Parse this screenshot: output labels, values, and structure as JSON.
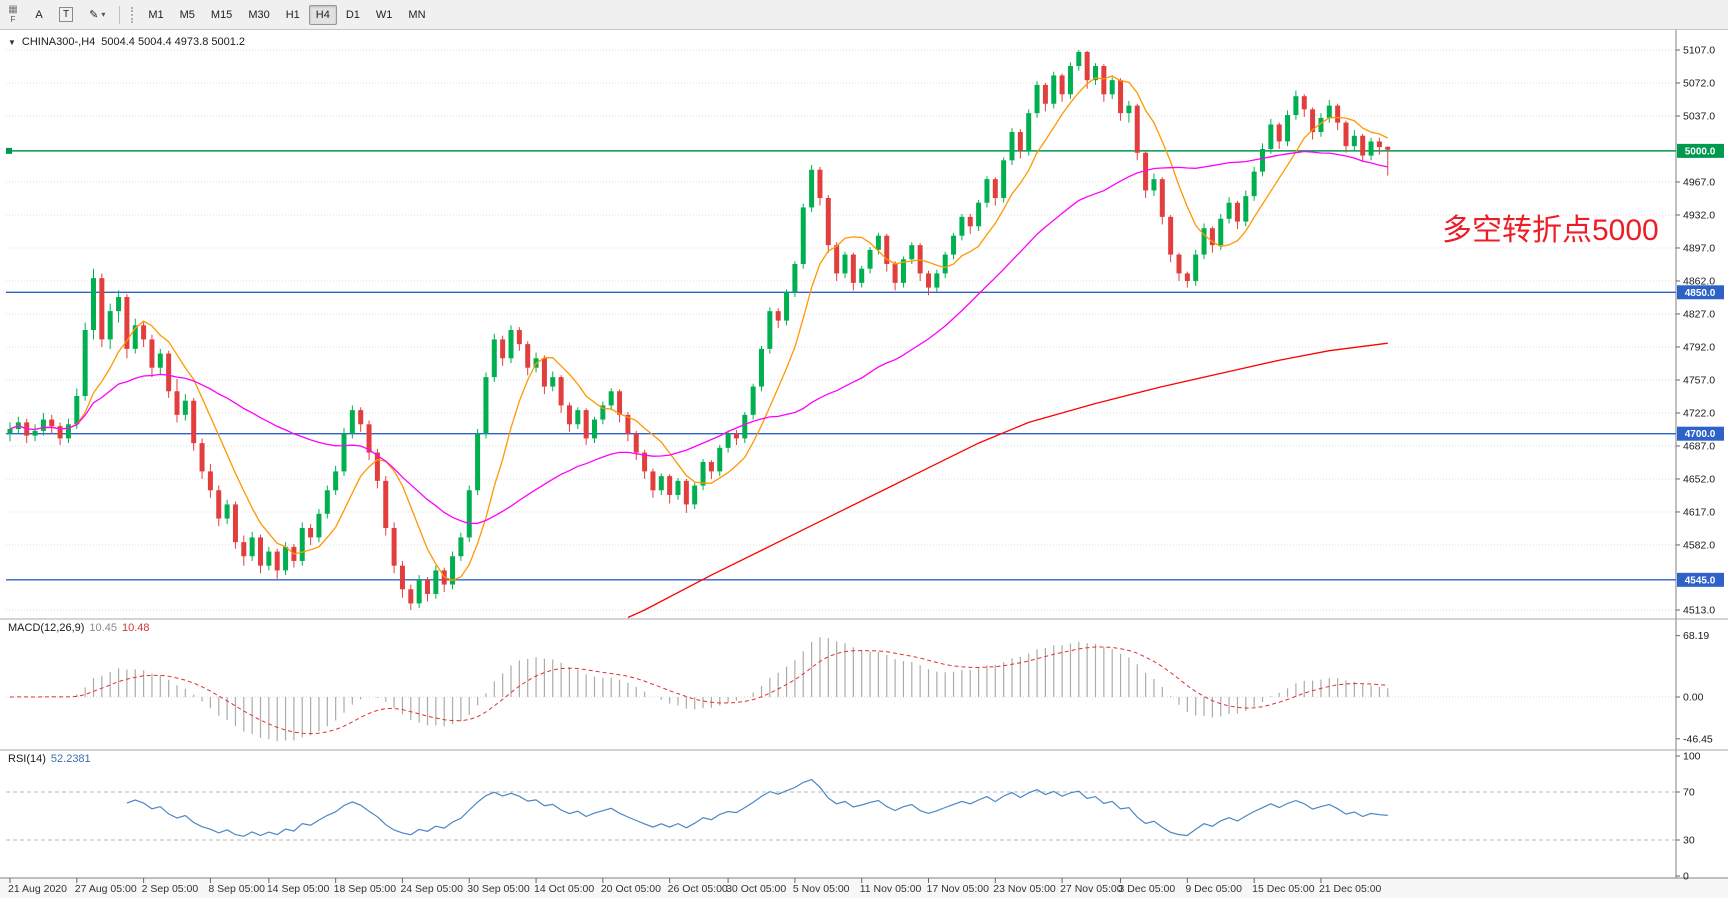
{
  "toolbar": {
    "file_label": "F",
    "icons": {
      "grid": "▦",
      "a": "A",
      "t": "T",
      "pencil": "✎",
      "caret": "▾"
    },
    "timeframes": [
      "M1",
      "M5",
      "M15",
      "M30",
      "H1",
      "H4",
      "D1",
      "W1",
      "MN"
    ],
    "active_timeframe": "H4"
  },
  "chart": {
    "expand_icon": "▼",
    "title": "CHINA300-,H4",
    "ohlc_text": "5004.4 5004.4 4973.8 5001.2",
    "annotation": {
      "text": "多空转折点5000",
      "color": "#ee1c25"
    }
  },
  "chart_data": {
    "type": "candlestick",
    "symbol": "CHINA300-",
    "timeframe": "H4",
    "colors": {
      "bull": "#00b050",
      "bear": "#e23e3e",
      "grid": "#dedede",
      "hline_green": "#009a4e",
      "hline_blue": "#2e62c9",
      "macd_hist": "#ababab",
      "macd_signal": "#e03030",
      "rsi_line": "#4a86c8"
    },
    "price_axis": {
      "min": 4513,
      "max": 5107,
      "ticks": [
        5107,
        5072,
        5037,
        4967,
        4932,
        4897,
        4862,
        4827,
        4792,
        4757,
        4722,
        4687,
        4652,
        4617,
        4582,
        4513
      ],
      "lines": [
        {
          "price": 5000,
          "label": "5000.0",
          "color": "#009a4e",
          "handle": true
        },
        {
          "price": 4850,
          "label": "4850.0",
          "color": "#2e62c9"
        },
        {
          "price": 4700,
          "label": "4700.0",
          "color": "#2e62c9"
        },
        {
          "price": 4545,
          "label": "4545.0",
          "color": "#2e62c9"
        }
      ]
    },
    "time_labels": [
      [
        "21 Aug 2020",
        0
      ],
      [
        "27 Aug 05:00",
        8
      ],
      [
        "2 Sep 05:00",
        16
      ],
      [
        "8 Sep 05:00",
        24
      ],
      [
        "14 Sep 05:00",
        31
      ],
      [
        "18 Sep 05:00",
        39
      ],
      [
        "24 Sep 05:00",
        47
      ],
      [
        "30 Sep 05:00",
        55
      ],
      [
        "14 Oct 05:00",
        63
      ],
      [
        "20 Oct 05:00",
        71
      ],
      [
        "26 Oct 05:00",
        79
      ],
      [
        "30 Oct 05:00",
        86
      ],
      [
        "5 Nov 05:00",
        94
      ],
      [
        "11 Nov 05:00",
        102
      ],
      [
        "17 Nov 05:00",
        110
      ],
      [
        "23 Nov 05:00",
        118
      ],
      [
        "27 Nov 05:00",
        126
      ],
      [
        "3 Dec 05:00",
        133
      ],
      [
        "9 Dec 05:00",
        141
      ],
      [
        "15 Dec 05:00",
        149
      ],
      [
        "21 Dec 05:00",
        157
      ]
    ],
    "candles": [
      [
        4700,
        4712,
        4692,
        4705
      ],
      [
        4705,
        4718,
        4700,
        4712
      ],
      [
        4712,
        4716,
        4690,
        4698
      ],
      [
        4698,
        4710,
        4692,
        4703
      ],
      [
        4703,
        4722,
        4698,
        4715
      ],
      [
        4715,
        4720,
        4700,
        4708
      ],
      [
        4708,
        4712,
        4688,
        4695
      ],
      [
        4695,
        4716,
        4690,
        4710
      ],
      [
        4710,
        4748,
        4705,
        4740
      ],
      [
        4740,
        4818,
        4735,
        4810
      ],
      [
        4810,
        4875,
        4800,
        4865
      ],
      [
        4865,
        4870,
        4792,
        4800
      ],
      [
        4800,
        4838,
        4790,
        4830
      ],
      [
        4830,
        4852,
        4818,
        4845
      ],
      [
        4845,
        4848,
        4780,
        4790
      ],
      [
        4790,
        4822,
        4785,
        4815
      ],
      [
        4815,
        4820,
        4792,
        4800
      ],
      [
        4800,
        4805,
        4760,
        4770
      ],
      [
        4770,
        4790,
        4762,
        4785
      ],
      [
        4785,
        4788,
        4738,
        4745
      ],
      [
        4745,
        4758,
        4712,
        4720
      ],
      [
        4720,
        4742,
        4714,
        4735
      ],
      [
        4735,
        4738,
        4682,
        4690
      ],
      [
        4690,
        4695,
        4652,
        4660
      ],
      [
        4660,
        4668,
        4632,
        4640
      ],
      [
        4640,
        4645,
        4602,
        4610
      ],
      [
        4610,
        4630,
        4604,
        4625
      ],
      [
        4625,
        4628,
        4578,
        4585
      ],
      [
        4585,
        4592,
        4560,
        4570
      ],
      [
        4570,
        4596,
        4565,
        4590
      ],
      [
        4590,
        4593,
        4552,
        4560
      ],
      [
        4560,
        4580,
        4555,
        4575
      ],
      [
        4575,
        4578,
        4546,
        4555
      ],
      [
        4555,
        4585,
        4550,
        4580
      ],
      [
        4580,
        4583,
        4558,
        4565
      ],
      [
        4565,
        4606,
        4560,
        4600
      ],
      [
        4600,
        4604,
        4582,
        4590
      ],
      [
        4590,
        4620,
        4585,
        4615
      ],
      [
        4615,
        4645,
        4610,
        4640
      ],
      [
        4640,
        4666,
        4635,
        4660
      ],
      [
        4660,
        4706,
        4655,
        4700
      ],
      [
        4700,
        4730,
        4695,
        4725
      ],
      [
        4725,
        4728,
        4702,
        4710
      ],
      [
        4710,
        4714,
        4672,
        4680
      ],
      [
        4680,
        4684,
        4642,
        4650
      ],
      [
        4650,
        4655,
        4592,
        4600
      ],
      [
        4600,
        4606,
        4552,
        4560
      ],
      [
        4560,
        4565,
        4526,
        4535
      ],
      [
        4535,
        4540,
        4513,
        4520
      ],
      [
        4520,
        4550,
        4515,
        4545
      ],
      [
        4545,
        4548,
        4522,
        4530
      ],
      [
        4530,
        4560,
        4525,
        4555
      ],
      [
        4555,
        4558,
        4532,
        4540
      ],
      [
        4540,
        4575,
        4535,
        4570
      ],
      [
        4570,
        4595,
        4565,
        4590
      ],
      [
        4590,
        4645,
        4585,
        4640
      ],
      [
        4640,
        4705,
        4635,
        4700
      ],
      [
        4700,
        4765,
        4695,
        4760
      ],
      [
        4760,
        4806,
        4755,
        4800
      ],
      [
        4800,
        4804,
        4772,
        4780
      ],
      [
        4780,
        4815,
        4775,
        4810
      ],
      [
        4810,
        4813,
        4788,
        4795
      ],
      [
        4795,
        4798,
        4762,
        4770
      ],
      [
        4770,
        4786,
        4765,
        4780
      ],
      [
        4780,
        4783,
        4742,
        4750
      ],
      [
        4750,
        4766,
        4745,
        4760
      ],
      [
        4760,
        4762,
        4722,
        4730
      ],
      [
        4730,
        4733,
        4702,
        4710
      ],
      [
        4710,
        4728,
        4705,
        4725
      ],
      [
        4725,
        4727,
        4688,
        4695
      ],
      [
        4695,
        4718,
        4690,
        4715
      ],
      [
        4715,
        4734,
        4710,
        4730
      ],
      [
        4730,
        4748,
        4725,
        4745
      ],
      [
        4745,
        4747,
        4712,
        4720
      ],
      [
        4720,
        4723,
        4692,
        4700
      ],
      [
        4700,
        4703,
        4672,
        4680
      ],
      [
        4680,
        4683,
        4652,
        4660
      ],
      [
        4660,
        4663,
        4632,
        4640
      ],
      [
        4640,
        4658,
        4635,
        4655
      ],
      [
        4655,
        4657,
        4626,
        4635
      ],
      [
        4635,
        4653,
        4630,
        4650
      ],
      [
        4650,
        4652,
        4616,
        4625
      ],
      [
        4625,
        4648,
        4620,
        4645
      ],
      [
        4645,
        4673,
        4640,
        4670
      ],
      [
        4670,
        4672,
        4652,
        4660
      ],
      [
        4660,
        4688,
        4655,
        4685
      ],
      [
        4685,
        4703,
        4680,
        4700
      ],
      [
        4700,
        4704,
        4688,
        4695
      ],
      [
        4695,
        4723,
        4690,
        4720
      ],
      [
        4720,
        4753,
        4715,
        4750
      ],
      [
        4750,
        4793,
        4745,
        4790
      ],
      [
        4790,
        4834,
        4785,
        4830
      ],
      [
        4830,
        4833,
        4812,
        4820
      ],
      [
        4820,
        4853,
        4815,
        4850
      ],
      [
        4850,
        4883,
        4845,
        4880
      ],
      [
        4880,
        4944,
        4875,
        4940
      ],
      [
        4940,
        4985,
        4935,
        4980
      ],
      [
        4980,
        4983,
        4942,
        4950
      ],
      [
        4950,
        4953,
        4892,
        4900
      ],
      [
        4900,
        4903,
        4862,
        4870
      ],
      [
        4870,
        4893,
        4865,
        4890
      ],
      [
        4890,
        4892,
        4852,
        4860
      ],
      [
        4860,
        4878,
        4855,
        4875
      ],
      [
        4875,
        4898,
        4870,
        4895
      ],
      [
        4895,
        4913,
        4890,
        4910
      ],
      [
        4910,
        4912,
        4872,
        4880
      ],
      [
        4880,
        4883,
        4852,
        4860
      ],
      [
        4860,
        4888,
        4855,
        4885
      ],
      [
        4885,
        4903,
        4880,
        4900
      ],
      [
        4900,
        4902,
        4862,
        4870
      ],
      [
        4870,
        4873,
        4847,
        4855
      ],
      [
        4855,
        4874,
        4850,
        4870
      ],
      [
        4870,
        4893,
        4865,
        4890
      ],
      [
        4890,
        4913,
        4885,
        4910
      ],
      [
        4910,
        4933,
        4905,
        4930
      ],
      [
        4930,
        4933,
        4912,
        4920
      ],
      [
        4920,
        4948,
        4915,
        4945
      ],
      [
        4945,
        4973,
        4940,
        4970
      ],
      [
        4970,
        4972,
        4942,
        4950
      ],
      [
        4950,
        4993,
        4945,
        4990
      ],
      [
        4990,
        5024,
        4985,
        5020
      ],
      [
        5020,
        5023,
        4992,
        5000
      ],
      [
        5000,
        5044,
        4995,
        5040
      ],
      [
        5040,
        5074,
        5035,
        5070
      ],
      [
        5070,
        5072,
        5042,
        5050
      ],
      [
        5050,
        5084,
        5045,
        5080
      ],
      [
        5080,
        5082,
        5052,
        5060
      ],
      [
        5060,
        5094,
        5055,
        5090
      ],
      [
        5090,
        5107,
        5085,
        5105
      ],
      [
        5105,
        5106,
        5066,
        5075
      ],
      [
        5075,
        5093,
        5070,
        5090
      ],
      [
        5090,
        5092,
        5052,
        5060
      ],
      [
        5060,
        5078,
        5055,
        5075
      ],
      [
        5075,
        5077,
        5032,
        5040
      ],
      [
        5040,
        5053,
        5030,
        5048
      ],
      [
        5048,
        5050,
        4990,
        4998
      ],
      [
        4998,
        5000,
        4950,
        4958
      ],
      [
        4958,
        4976,
        4952,
        4970
      ],
      [
        4970,
        4972,
        4922,
        4930
      ],
      [
        4930,
        4932,
        4882,
        4890
      ],
      [
        4890,
        4892,
        4862,
        4870
      ],
      [
        4870,
        4872,
        4855,
        4862
      ],
      [
        4862,
        4895,
        4857,
        4890
      ],
      [
        4890,
        4923,
        4885,
        4918
      ],
      [
        4918,
        4920,
        4892,
        4900
      ],
      [
        4900,
        4933,
        4895,
        4928
      ],
      [
        4928,
        4951,
        4923,
        4945
      ],
      [
        4945,
        4947,
        4917,
        4925
      ],
      [
        4925,
        4958,
        4920,
        4952
      ],
      [
        4952,
        4983,
        4947,
        4978
      ],
      [
        4978,
        5008,
        4973,
        5002
      ],
      [
        5002,
        5034,
        4997,
        5028
      ],
      [
        5028,
        5030,
        5002,
        5010
      ],
      [
        5010,
        5043,
        5005,
        5038
      ],
      [
        5038,
        5064,
        5033,
        5058
      ],
      [
        5058,
        5060,
        5036,
        5044
      ],
      [
        5044,
        5046,
        5012,
        5020
      ],
      [
        5020,
        5040,
        5015,
        5035
      ],
      [
        5035,
        5054,
        5030,
        5048
      ],
      [
        5048,
        5050,
        5022,
        5030
      ],
      [
        5030,
        5032,
        4998,
        5005
      ],
      [
        5005,
        5022,
        5000,
        5016
      ],
      [
        5016,
        5018,
        4988,
        4995
      ],
      [
        4995,
        5014,
        4990,
        5010
      ],
      [
        5010,
        5014,
        4996,
        5004
      ],
      [
        5004.4,
        5004.4,
        4973.8,
        5001.2
      ]
    ],
    "overlays": {
      "ma_fast": {
        "period": 8,
        "color": "#ff9800"
      },
      "ma_mid": {
        "period": 34,
        "color": "#ff00ff"
      },
      "ma_slow": {
        "color": "#ff0000",
        "points": [
          [
            74,
            4505
          ],
          [
            76,
            4513
          ],
          [
            84,
            4550
          ],
          [
            92,
            4585
          ],
          [
            100,
            4620
          ],
          [
            108,
            4655
          ],
          [
            116,
            4690
          ],
          [
            122,
            4712
          ],
          [
            130,
            4732
          ],
          [
            138,
            4750
          ],
          [
            146,
            4766
          ],
          [
            152,
            4778
          ],
          [
            158,
            4788
          ],
          [
            165,
            4796
          ]
        ]
      }
    },
    "indicators": [
      {
        "name": "MACD",
        "label": "MACD(12,26,9)",
        "value_main": "10.45",
        "value_signal": "10.48",
        "axis": [
          68.19,
          0,
          -46.45
        ],
        "params": [
          12,
          26,
          9
        ]
      },
      {
        "name": "RSI",
        "label": "RSI(14)",
        "value": "52.2381",
        "axis": [
          100,
          70,
          30,
          0
        ],
        "levels": [
          70,
          30
        ],
        "period": 14
      }
    ]
  }
}
